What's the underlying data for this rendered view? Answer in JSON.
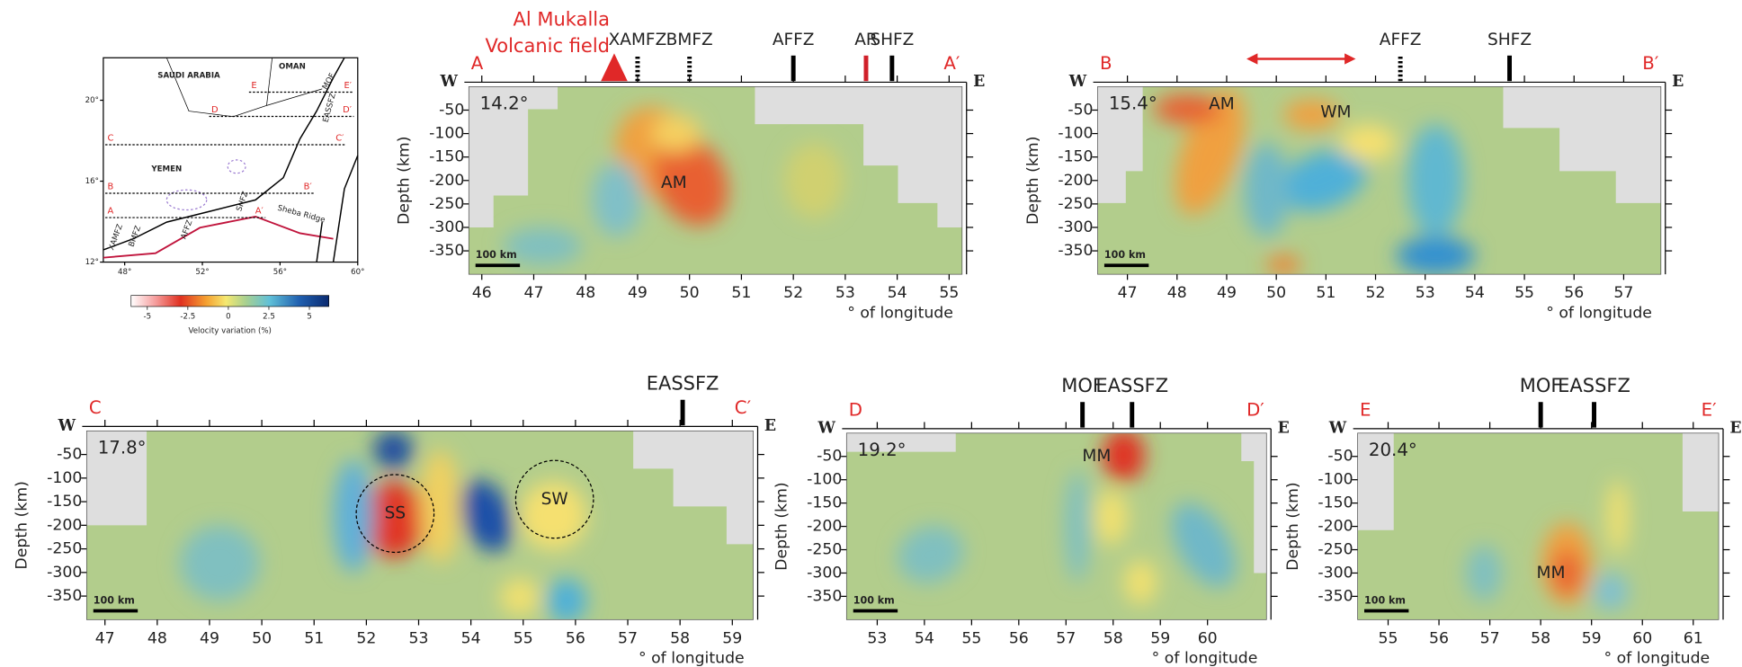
{
  "map": {
    "countries": [
      "SAUDI ARABIA",
      "OMAN",
      "YEMEN"
    ],
    "feature": "Sheba Ridge",
    "faults": [
      "XAMFZ",
      "BMFZ",
      "AFFZ",
      "SHFZ",
      "MOF",
      "EASSFZ"
    ],
    "xlim": [
      46.9,
      60
    ],
    "ylim": [
      12,
      22.1
    ],
    "xticks": [
      {
        "value": 48,
        "label": "48°"
      },
      {
        "value": 52,
        "label": "52°"
      },
      {
        "value": 56,
        "label": "56°"
      },
      {
        "value": 60,
        "label": "60°"
      }
    ],
    "yticks": [
      {
        "value": 12,
        "label": "12°"
      },
      {
        "value": 16,
        "label": "16°"
      },
      {
        "value": 20,
        "label": "20°"
      }
    ]
  },
  "colorbar": {
    "label": "Velocity variation (%)",
    "lim": [
      -6,
      6.2
    ],
    "ticks": [
      -5,
      -2.5,
      0,
      2.5,
      5
    ]
  },
  "chart_data": [
    {
      "type": "section",
      "start": "A",
      "end": "A′",
      "west": "W",
      "east": "E",
      "latitude": {
        "value": 14.2,
        "label": "14.2°"
      },
      "ylabel": "Depth (km)",
      "xlabel": "° of longitude",
      "scale_bar": "100 km",
      "xlim": [
        45.75,
        55.25
      ],
      "xticks": [
        46,
        47,
        48,
        49,
        50,
        51,
        52,
        53,
        54,
        55
      ],
      "ylim": [
        -400,
        0
      ],
      "yticks": [
        -50,
        -100,
        -150,
        -200,
        -250,
        -300,
        -350
      ],
      "volcano": {
        "lines": [
          "Al Mukalla",
          "Volcanic field"
        ],
        "lon": 48.55
      },
      "faults": [
        {
          "name": "XAMFZ",
          "lon": 49,
          "style": "dotted",
          "color": "#000000"
        },
        {
          "name": "BMFZ",
          "lon": 50,
          "style": "dotted",
          "color": "#000000"
        },
        {
          "name": "AFFZ",
          "lon": 52,
          "style": "solid",
          "color": "#000000"
        },
        {
          "name": "AR",
          "lon": 53.4,
          "style": "solid",
          "color": "#d0202a"
        },
        {
          "name": "SHFZ",
          "lon": 53.9,
          "style": "solid",
          "color": "#000000"
        }
      ],
      "anomalies": [
        {
          "label": "AM",
          "lon": 49.7,
          "depth": -205,
          "circled": false
        }
      ]
    },
    {
      "type": "section",
      "start": "B",
      "end": "B′",
      "west": "W",
      "east": "E",
      "latitude": {
        "value": 15.4,
        "label": "15.4°"
      },
      "ylabel": "Depth (km)",
      "xlabel": "° of longitude",
      "scale_bar": "100 km",
      "xlim": [
        46.4,
        57.75
      ],
      "xticks": [
        47,
        48,
        49,
        50,
        51,
        52,
        53,
        54,
        55,
        56,
        57
      ],
      "ylim": [
        -400,
        0
      ],
      "yticks": [
        -50,
        -100,
        -150,
        -200,
        -250,
        -300,
        -350
      ],
      "arrow": [
        49.4,
        51.6
      ],
      "faults": [
        {
          "name": "AFFZ",
          "lon": 52.5,
          "style": "dotted",
          "color": "#000000"
        },
        {
          "name": "SHFZ",
          "lon": 54.7,
          "style": "solid",
          "color": "#000000"
        }
      ],
      "anomalies": [
        {
          "label": "AM",
          "lon": 48.9,
          "depth": -38,
          "circled": false
        },
        {
          "label": "WM",
          "lon": 51.2,
          "depth": -55,
          "circled": false
        }
      ]
    },
    {
      "type": "section",
      "start": "C",
      "end": "C′",
      "west": "W",
      "east": "E",
      "latitude": {
        "value": 17.8,
        "label": "17.8°"
      },
      "ylabel": "Depth (km)",
      "xlabel": "° of longitude",
      "scale_bar": "100 km",
      "xlim": [
        46.65,
        59.4
      ],
      "xticks": [
        47,
        48,
        49,
        50,
        51,
        52,
        53,
        54,
        55,
        56,
        57,
        58,
        59
      ],
      "ylim": [
        -400,
        0
      ],
      "yticks": [
        -50,
        -100,
        -150,
        -200,
        -250,
        -300,
        -350
      ],
      "faults": [
        {
          "name": "EASSFZ",
          "lon": 58.05,
          "style": "solid",
          "color": "#000000"
        }
      ],
      "anomalies": [
        {
          "label": "SS",
          "lon": 52.55,
          "depth": -175,
          "circled": true
        },
        {
          "label": "SW",
          "lon": 55.6,
          "depth": -145,
          "circled": true
        }
      ]
    },
    {
      "type": "section",
      "start": "D",
      "end": "D′",
      "west": "W",
      "east": "E",
      "latitude": {
        "value": 19.2,
        "label": "19.2°"
      },
      "ylabel": "Depth (km)",
      "xlabel": "° of longitude",
      "scale_bar": "100 km",
      "xlim": [
        52.35,
        61.25
      ],
      "xticks": [
        53,
        54,
        55,
        56,
        57,
        58,
        59,
        60
      ],
      "ylim": [
        -400,
        0
      ],
      "yticks": [
        -50,
        -100,
        -150,
        -200,
        -250,
        -300,
        -350
      ],
      "faults": [
        {
          "name": "MOF",
          "lon": 57.35,
          "style": "solid",
          "color": "#000000"
        },
        {
          "name": "EASSFZ",
          "lon": 58.4,
          "style": "solid",
          "color": "#000000"
        }
      ],
      "anomalies": [
        {
          "label": "MM",
          "lon": 57.65,
          "depth": -50,
          "circled": false
        }
      ]
    },
    {
      "type": "section",
      "start": "E",
      "end": "E′",
      "west": "W",
      "east": "E",
      "latitude": {
        "value": 20.4,
        "label": "20.4°"
      },
      "ylabel": "Depth (km)",
      "xlabel": "° of longitude",
      "scale_bar": "100 km",
      "xlim": [
        54.4,
        61.5
      ],
      "xticks": [
        55,
        56,
        57,
        58,
        59,
        60,
        61
      ],
      "ylim": [
        -400,
        0
      ],
      "yticks": [
        -50,
        -100,
        -150,
        -200,
        -250,
        -300,
        -350
      ],
      "faults": [
        {
          "name": "MOF",
          "lon": 58,
          "style": "solid",
          "color": "#000000"
        },
        {
          "name": "EASSFZ",
          "lon": 59.05,
          "style": "solid",
          "color": "#000000"
        }
      ],
      "anomalies": [
        {
          "label": "MM",
          "lon": 58.2,
          "depth": -300,
          "circled": false
        }
      ]
    }
  ]
}
